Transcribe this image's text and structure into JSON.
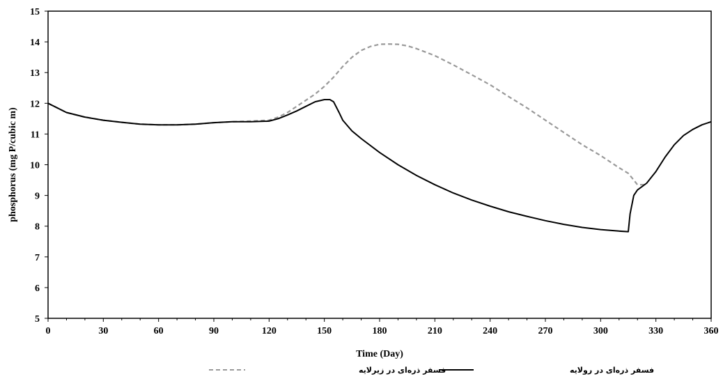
{
  "chart_data": {
    "type": "line",
    "title": "",
    "xlabel": "Time (Day)",
    "ylabel": "phosphorus (mg P/cubic m)",
    "xlim": [
      0,
      360
    ],
    "ylim": [
      5,
      15
    ],
    "xticks": [
      0,
      30,
      60,
      90,
      120,
      150,
      180,
      210,
      240,
      270,
      300,
      330,
      360
    ],
    "yticks": [
      5,
      6,
      7,
      8,
      9,
      10,
      11,
      12,
      13,
      14,
      15
    ],
    "grid": false,
    "legend_position": "bottom",
    "series": [
      {
        "name": "فسفر ذره‌ای در زیرلایه",
        "color": "#999999",
        "style": "dashed",
        "x": [
          0,
          5,
          10,
          20,
          30,
          40,
          50,
          60,
          70,
          80,
          90,
          100,
          110,
          120,
          125,
          130,
          135,
          140,
          145,
          150,
          155,
          160,
          165,
          170,
          175,
          180,
          185,
          190,
          195,
          200,
          210,
          220,
          230,
          240,
          250,
          260,
          270,
          280,
          290,
          300,
          310,
          315,
          318,
          320,
          325
        ],
        "y": [
          12.0,
          11.85,
          11.7,
          11.55,
          11.45,
          11.38,
          11.32,
          11.3,
          11.3,
          11.32,
          11.37,
          11.4,
          11.42,
          11.45,
          11.55,
          11.7,
          11.9,
          12.1,
          12.3,
          12.55,
          12.85,
          13.2,
          13.5,
          13.72,
          13.85,
          13.92,
          13.93,
          13.92,
          13.87,
          13.78,
          13.55,
          13.25,
          12.93,
          12.6,
          12.22,
          11.85,
          11.45,
          11.05,
          10.65,
          10.3,
          9.9,
          9.72,
          9.5,
          9.35,
          9.35
        ]
      },
      {
        "name": "فسفر ذره‌ای در رولایه",
        "color": "#000000",
        "style": "solid",
        "x": [
          0,
          5,
          10,
          20,
          30,
          40,
          50,
          60,
          70,
          80,
          90,
          100,
          110,
          120,
          125,
          130,
          135,
          140,
          145,
          150,
          153,
          155,
          158,
          160,
          165,
          170,
          180,
          190,
          200,
          210,
          220,
          230,
          240,
          250,
          260,
          270,
          280,
          290,
          300,
          310,
          315,
          316,
          318,
          320,
          325,
          330,
          335,
          340,
          345,
          350,
          355,
          360
        ],
        "y": [
          12.0,
          11.85,
          11.7,
          11.55,
          11.45,
          11.38,
          11.32,
          11.3,
          11.3,
          11.32,
          11.37,
          11.4,
          11.4,
          11.42,
          11.5,
          11.62,
          11.75,
          11.9,
          12.05,
          12.12,
          12.12,
          12.05,
          11.7,
          11.45,
          11.1,
          10.85,
          10.4,
          10.0,
          9.65,
          9.35,
          9.08,
          8.85,
          8.65,
          8.47,
          8.32,
          8.18,
          8.06,
          7.96,
          7.89,
          7.84,
          7.82,
          8.4,
          9.0,
          9.18,
          9.4,
          9.78,
          10.25,
          10.65,
          10.95,
          11.15,
          11.3,
          11.4
        ]
      }
    ]
  }
}
